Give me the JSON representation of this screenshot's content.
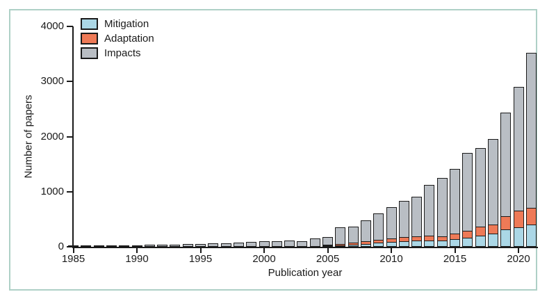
{
  "figure": {
    "frame_border_color": "#aed0c6",
    "background_color": "#ffffff",
    "axis_color": "#1a1a1a"
  },
  "chart_data": {
    "type": "bar",
    "stacked": true,
    "title": "",
    "xlabel": "Publication year",
    "ylabel": "Number of papers",
    "ylim": [
      0,
      4000
    ],
    "yticks": [
      0,
      1000,
      2000,
      3000,
      4000
    ],
    "xticks": [
      1985,
      1990,
      1995,
      2000,
      2005,
      2010,
      2015,
      2020
    ],
    "grid": false,
    "legend_position": "top-left",
    "categories": [
      1985,
      1986,
      1987,
      1988,
      1989,
      1990,
      1991,
      1992,
      1993,
      1994,
      1995,
      1996,
      1997,
      1998,
      1999,
      2000,
      2001,
      2002,
      2003,
      2004,
      2005,
      2006,
      2007,
      2008,
      2009,
      2010,
      2011,
      2012,
      2013,
      2014,
      2015,
      2016,
      2017,
      2018,
      2019,
      2020,
      2021
    ],
    "series": [
      {
        "name": "Mitigation",
        "color": "#abd7e6",
        "values": [
          0,
          0,
          0,
          0,
          0,
          0,
          0,
          0,
          0,
          0,
          0,
          0,
          0,
          0,
          0,
          0,
          0,
          0,
          0,
          0,
          5,
          15,
          20,
          40,
          60,
          70,
          85,
          100,
          100,
          105,
          120,
          150,
          190,
          225,
          300,
          345,
          395
        ]
      },
      {
        "name": "Adaptation",
        "color": "#ee7a57",
        "values": [
          0,
          0,
          0,
          0,
          0,
          0,
          0,
          0,
          0,
          0,
          0,
          0,
          0,
          0,
          0,
          0,
          0,
          0,
          0,
          0,
          10,
          25,
          40,
          55,
          55,
          65,
          70,
          75,
          85,
          70,
          95,
          130,
          165,
          170,
          245,
          300,
          300
        ]
      },
      {
        "name": "Impacts",
        "color": "#b9bec4",
        "values": [
          5,
          6,
          8,
          10,
          15,
          25,
          32,
          38,
          40,
          50,
          55,
          62,
          65,
          76,
          85,
          97,
          105,
          115,
          105,
          150,
          165,
          310,
          310,
          385,
          490,
          580,
          675,
          730,
          935,
          1075,
          1195,
          1420,
          1435,
          1560,
          1895,
          2255,
          2825
        ]
      }
    ]
  }
}
